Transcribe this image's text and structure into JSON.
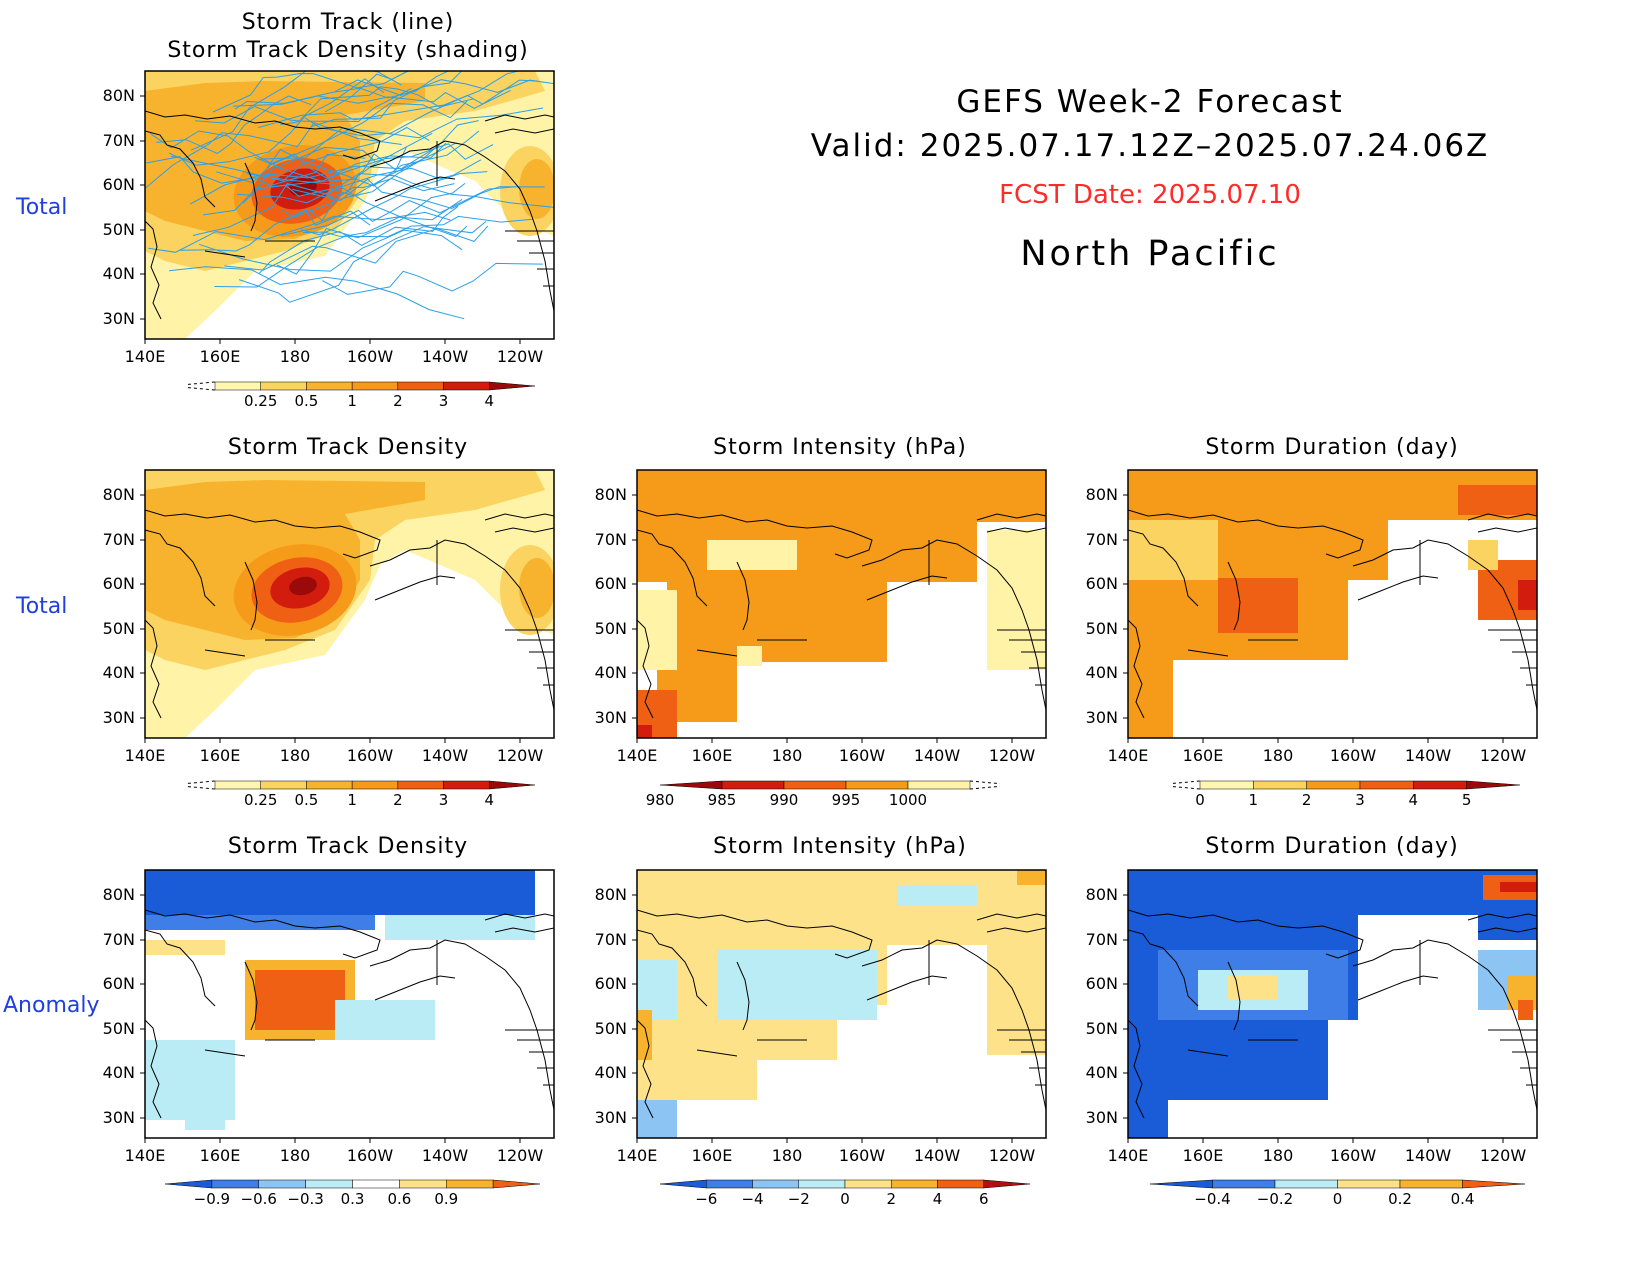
{
  "header": {
    "line1": "GEFS Week-2 Forecast",
    "line2": "Valid: 2025.07.17.12Z–2025.07.24.06Z",
    "fcst": "FCST Date: 2025.07.10",
    "region": "North Pacific",
    "fcst_color": "#ff2a2a"
  },
  "row_labels": {
    "top": "Total",
    "middle": "Total",
    "bottom": "Anomaly"
  },
  "axes": {
    "lat_labels": [
      "80N",
      "70N",
      "60N",
      "50N",
      "40N",
      "30N"
    ],
    "lon_labels": [
      "140E",
      "160E",
      "180",
      "160W",
      "140W",
      "120W"
    ]
  },
  "panels": {
    "track": {
      "title1": "Storm Track (line)",
      "title2": "Storm Track Density (shading)"
    },
    "density": {
      "title": "Storm Track Density"
    },
    "intensity": {
      "title": "Storm Intensity (hPa)"
    },
    "duration": {
      "title": "Storm Duration (day)"
    },
    "density_anom": {
      "title": "Storm Track Density"
    },
    "intensity_anom": {
      "title": "Storm Intensity (hPa)"
    },
    "duration_anom": {
      "title": "Storm Duration (day)"
    }
  },
  "colorbars": {
    "density": {
      "labels": [
        "0.25",
        "0.5",
        "1",
        "2",
        "3",
        "4"
      ],
      "colors": [
        "#fff7b0",
        "#fbd360",
        "#f8b32e",
        "#f69a1a",
        "#f06014",
        "#d11c0e",
        "#9b0a0a"
      ]
    },
    "intensity": {
      "labels": [
        "980",
        "985",
        "990",
        "995",
        "1000"
      ],
      "colors": [
        "#9b0a0a",
        "#d11c0e",
        "#f06014",
        "#f69a1a",
        "#fff3a8"
      ]
    },
    "duration": {
      "labels": [
        "0",
        "1",
        "2",
        "3",
        "4",
        "5"
      ],
      "colors": [
        "#fff7b0",
        "#fbd360",
        "#f69a1a",
        "#f06014",
        "#d11c0e",
        "#9b0a0a"
      ]
    },
    "density_anom": {
      "labels": [
        "−0.9",
        "−0.6",
        "−0.3",
        "0.3",
        "0.6",
        "0.9"
      ],
      "colors": [
        "#1a5bd8",
        "#3e7ee6",
        "#8cc4f4",
        "#b9ecf4",
        "#ffffff",
        "#fde28a",
        "#f8b32e",
        "#f06014"
      ]
    },
    "intensity_anom": {
      "labels": [
        "−6",
        "−4",
        "−2",
        "0",
        "2",
        "4",
        "6"
      ],
      "colors": [
        "#1a5bd8",
        "#3e7ee6",
        "#8cc4f4",
        "#b9ecf4",
        "#fde28a",
        "#f8b32e",
        "#f06014",
        "#b01010"
      ]
    },
    "duration_anom": {
      "labels": [
        "−0.4",
        "−0.2",
        "0",
        "0.2",
        "0.4"
      ],
      "colors": [
        "#1a5bd8",
        "#3e7ee6",
        "#b9ecf4",
        "#fde28a",
        "#f8b32e",
        "#f06014"
      ]
    }
  }
}
